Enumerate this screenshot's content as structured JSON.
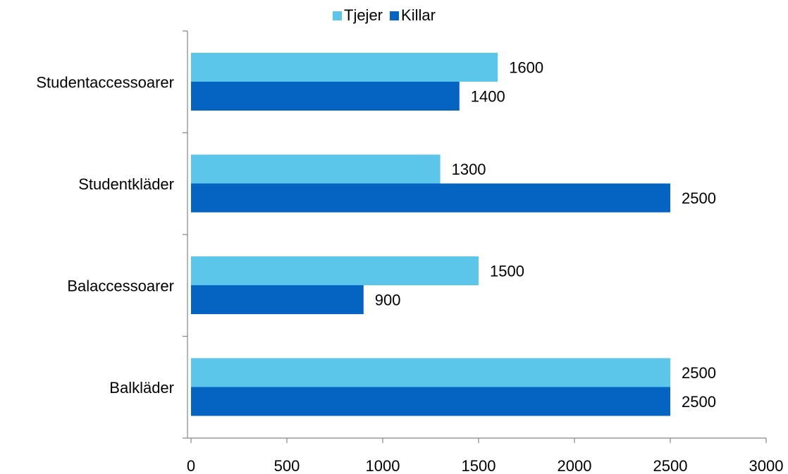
{
  "chart_data": {
    "type": "bar",
    "orientation": "horizontal",
    "categories": [
      "Studentaccessoarer",
      "Studentkläder",
      "Balaccessoarer",
      "Balkläder"
    ],
    "series": [
      {
        "name": "Tjejer",
        "values": [
          1600,
          1300,
          1500,
          2500
        ],
        "color": "#5BC5EA"
      },
      {
        "name": "Killar",
        "values": [
          1400,
          2500,
          900,
          2500
        ],
        "color": "#0563C1"
      }
    ],
    "xlim": [
      0,
      3000
    ],
    "xticks": [
      "0",
      "500",
      "1000",
      "1500",
      "2000",
      "2500",
      "3000"
    ],
    "grid": false,
    "legend_position": "top-center",
    "title": "",
    "xlabel": "",
    "ylabel": ""
  }
}
